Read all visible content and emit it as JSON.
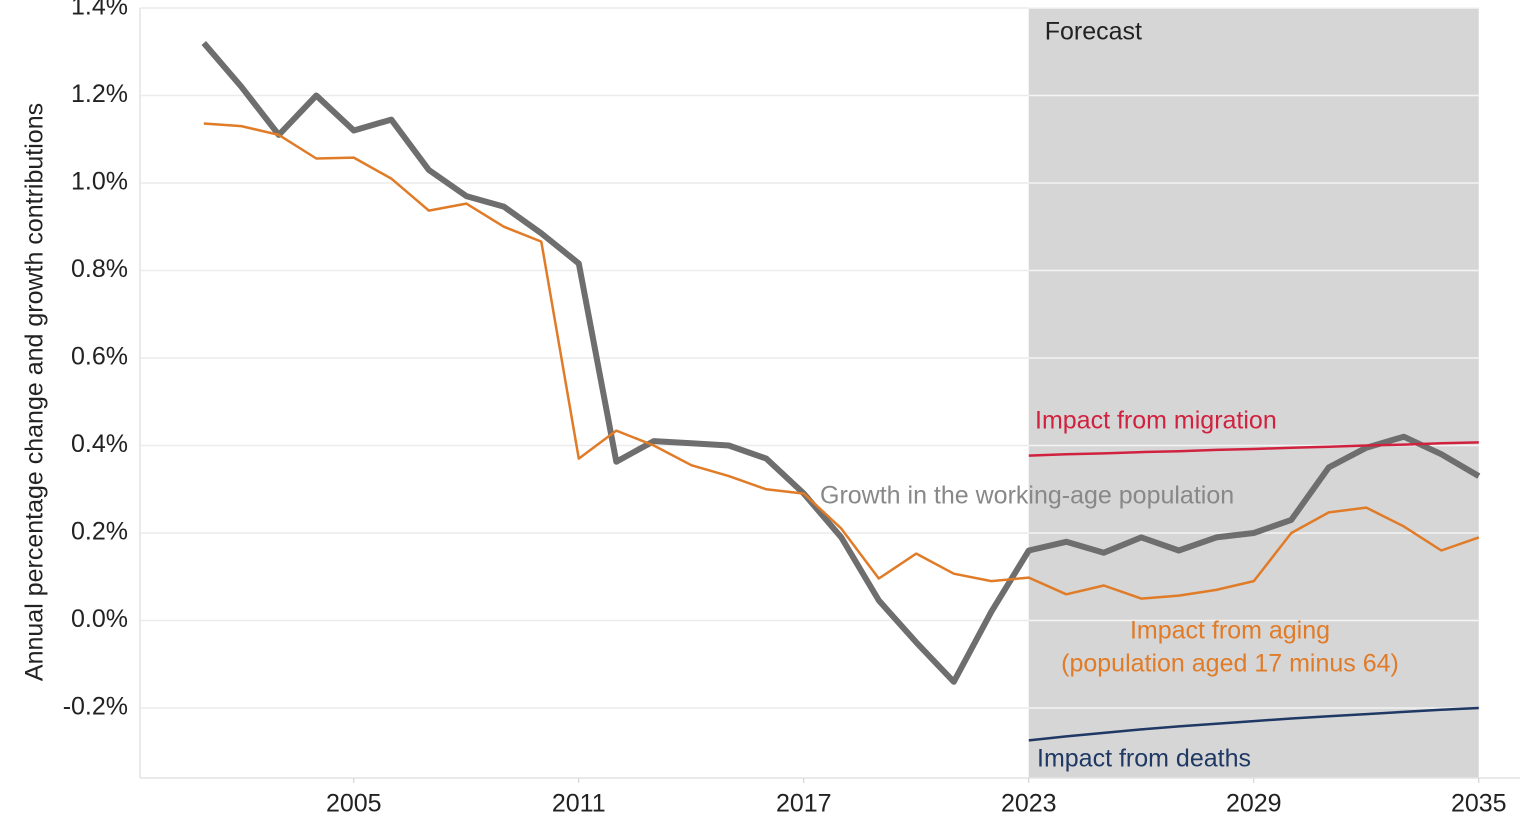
{
  "chart_data": {
    "type": "line",
    "y_label": "Annual percentage change and growth contributions",
    "x": [
      2001,
      2002,
      2003,
      2004,
      2005,
      2006,
      2007,
      2008,
      2009,
      2010,
      2011,
      2012,
      2013,
      2014,
      2015,
      2016,
      2017,
      2018,
      2019,
      2020,
      2021,
      2022,
      2023,
      2024,
      2025,
      2026,
      2027,
      2028,
      2029,
      2030,
      2031,
      2032,
      2033,
      2034,
      2035
    ],
    "series": [
      {
        "name": "Growth in the working-age population",
        "color": "#6e6e6e",
        "values": [
          1.32,
          1.22,
          1.11,
          1.2,
          1.12,
          1.145,
          1.03,
          0.97,
          0.946,
          0.885,
          0.816,
          0.363,
          0.41,
          0.405,
          0.4,
          0.37,
          0.29,
          0.19,
          0.046,
          -0.05,
          -0.14,
          0.02,
          0.16,
          0.18,
          0.155,
          0.19,
          0.16,
          0.19,
          0.2,
          0.23,
          0.35,
          0.395,
          0.42,
          0.38,
          0.33
        ]
      },
      {
        "name": "Impact from aging",
        "name_line2": "(population aged 17 minus 64)",
        "color": "#e07b28",
        "values": [
          1.136,
          1.13,
          1.11,
          1.056,
          1.058,
          1.01,
          0.937,
          0.953,
          0.9,
          0.866,
          0.37,
          0.434,
          0.4,
          0.355,
          0.33,
          0.3,
          0.29,
          0.21,
          0.096,
          0.153,
          0.107,
          0.09,
          0.098,
          0.06,
          0.08,
          0.05,
          0.057,
          0.07,
          0.09,
          0.2,
          0.247,
          0.258,
          0.215,
          0.16,
          0.19
        ]
      },
      {
        "name": "Impact from migration",
        "color": "#d0223f",
        "values": [
          null,
          null,
          null,
          null,
          null,
          null,
          null,
          null,
          null,
          null,
          null,
          null,
          null,
          null,
          null,
          null,
          null,
          null,
          null,
          null,
          null,
          null,
          0.377,
          0.38,
          0.382,
          0.385,
          0.387,
          0.39,
          0.392,
          0.395,
          0.397,
          0.4,
          0.402,
          0.405,
          0.407
        ]
      },
      {
        "name": "Impact from deaths",
        "color": "#1f3864",
        "values": [
          null,
          null,
          null,
          null,
          null,
          null,
          null,
          null,
          null,
          null,
          null,
          null,
          null,
          null,
          null,
          null,
          null,
          null,
          null,
          null,
          null,
          null,
          -0.274,
          -0.265,
          -0.257,
          -0.249,
          -0.242,
          -0.236,
          -0.23,
          -0.224,
          -0.219,
          -0.214,
          -0.209,
          -0.204,
          -0.2
        ]
      }
    ],
    "xlim": [
      1999.3,
      2036.1
    ],
    "xticks": [
      2005,
      2011,
      2017,
      2023,
      2029,
      2035
    ],
    "ylim": [
      -0.36,
      1.4
    ],
    "yticks": [
      {
        "value": -0.2,
        "label": "-0.2%"
      },
      {
        "value": 0,
        "label": "0.0%"
      },
      {
        "value": 0.2,
        "label": "0.2%"
      },
      {
        "value": 0.4,
        "label": "0.4%"
      },
      {
        "value": 0.6,
        "label": "0.6%"
      },
      {
        "value": 0.8,
        "label": "0.8%"
      },
      {
        "value": 1.0,
        "label": "1.0%"
      },
      {
        "value": 1.2,
        "label": "1.2%"
      },
      {
        "value": 1.4,
        "label": "1.4%"
      }
    ],
    "grid": true,
    "forecast": {
      "label": "Forecast",
      "start": 2023,
      "end": 2035
    }
  }
}
